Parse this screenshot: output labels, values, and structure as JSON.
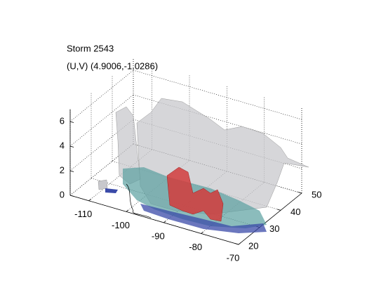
{
  "chart_data": {
    "type": "isosurface",
    "title": "Storm 2543",
    "subtitle": "(U,V) (4.9006,-1.0286)",
    "xlim": [
      -115,
      -70
    ],
    "xticks": [
      -110,
      -100,
      -90,
      -80,
      -70
    ],
    "ylim": [
      20,
      50
    ],
    "yticks": [
      20,
      30,
      40,
      50
    ],
    "zlim": [
      0,
      7
    ],
    "zticks": [
      0,
      2,
      4,
      6
    ],
    "grid": true
  }
}
